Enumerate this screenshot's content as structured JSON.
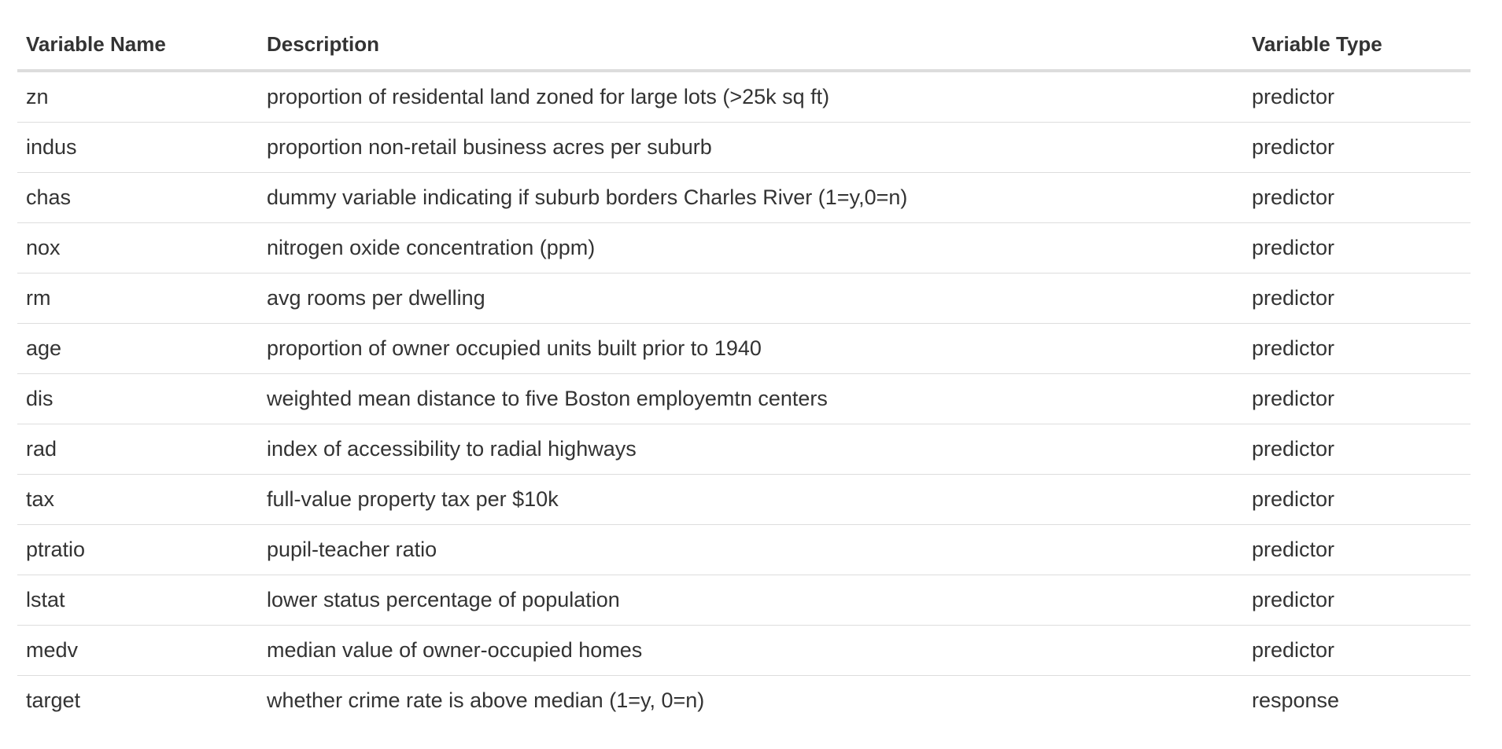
{
  "table": {
    "headers": [
      "Variable Name",
      "Description",
      "Variable Type"
    ],
    "rows": [
      {
        "name": "zn",
        "description": "proportion of residental land zoned for large lots (>25k sq ft)",
        "type": "predictor"
      },
      {
        "name": "indus",
        "description": "proportion non-retail business acres per suburb",
        "type": "predictor"
      },
      {
        "name": "chas",
        "description": "dummy variable indicating if suburb borders Charles River (1=y,0=n)",
        "type": "predictor"
      },
      {
        "name": "nox",
        "description": "nitrogen oxide concentration (ppm)",
        "type": "predictor"
      },
      {
        "name": "rm",
        "description": "avg rooms per dwelling",
        "type": "predictor"
      },
      {
        "name": "age",
        "description": "proportion of owner occupied units built prior to 1940",
        "type": "predictor"
      },
      {
        "name": "dis",
        "description": "weighted mean distance to five Boston employemtn centers",
        "type": "predictor"
      },
      {
        "name": "rad",
        "description": "index of accessibility to radial highways",
        "type": "predictor"
      },
      {
        "name": "tax",
        "description": "full-value property tax per $10k",
        "type": "predictor"
      },
      {
        "name": "ptratio",
        "description": "pupil-teacher ratio",
        "type": "predictor"
      },
      {
        "name": "lstat",
        "description": "lower status percentage of population",
        "type": "predictor"
      },
      {
        "name": "medv",
        "description": "median value of owner-occupied homes",
        "type": "predictor"
      },
      {
        "name": "target",
        "description": "whether crime rate is above median (1=y, 0=n)",
        "type": "response"
      }
    ]
  }
}
